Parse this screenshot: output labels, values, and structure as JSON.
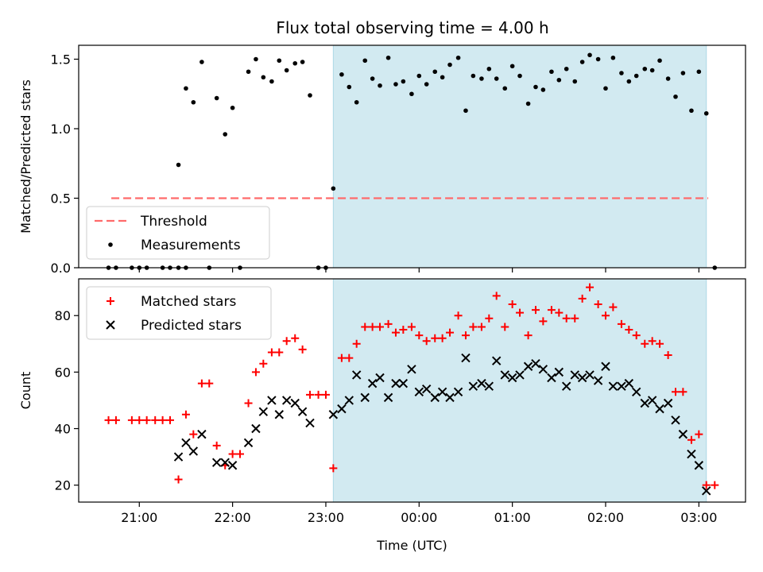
{
  "title": "Flux total observing time = 4.00 h",
  "colors": {
    "observing_window": "#add8e6",
    "threshold": "#ff6b6b",
    "measurements": "#000000",
    "matched": "#ff0000",
    "predicted": "#000000"
  },
  "chart_data": [
    {
      "type": "scatter",
      "panel": "top",
      "ylabel": "Matched/Predicted stars",
      "xlabel": "",
      "ylim": [
        0,
        1.6
      ],
      "yticks": [
        0.0,
        0.5,
        1.0,
        1.5
      ],
      "ytick_labels": [
        "0.0",
        "0.5",
        "1.0",
        "1.5"
      ],
      "x_unit": "hours since 00:00 UTC (negative = previous day)",
      "observing_window": [
        -0.92,
        3.08
      ],
      "threshold": {
        "name": "Threshold",
        "value": 0.5,
        "x_range": [
          -3.3,
          3.1
        ]
      },
      "legend": {
        "position": "lower-left",
        "entries": [
          "Threshold",
          "Measurements"
        ]
      },
      "series": [
        {
          "name": "Measurements",
          "points": [
            [
              -3.33,
              0.0
            ],
            [
              -3.25,
              0.0
            ],
            [
              -3.08,
              0.0
            ],
            [
              -3.0,
              0.0
            ],
            [
              -2.92,
              0.0
            ],
            [
              -2.75,
              0.0
            ],
            [
              -2.67,
              0.0
            ],
            [
              -2.58,
              0.0
            ],
            [
              -2.5,
              0.0
            ],
            [
              -2.58,
              0.74
            ],
            [
              -2.5,
              1.29
            ],
            [
              -2.42,
              1.19
            ],
            [
              -2.33,
              1.48
            ],
            [
              -2.25,
              0.0
            ],
            [
              -2.17,
              1.22
            ],
            [
              -2.08,
              0.96
            ],
            [
              -2.0,
              1.15
            ],
            [
              -1.92,
              0.0
            ],
            [
              -1.83,
              1.41
            ],
            [
              -1.75,
              1.5
            ],
            [
              -1.67,
              1.37
            ],
            [
              -1.58,
              1.34
            ],
            [
              -1.5,
              1.49
            ],
            [
              -1.42,
              1.42
            ],
            [
              -1.33,
              1.47
            ],
            [
              -1.25,
              1.48
            ],
            [
              -1.17,
              1.24
            ],
            [
              -1.08,
              0.0
            ],
            [
              -1.0,
              0.0
            ],
            [
              -0.92,
              0.57
            ],
            [
              -0.83,
              1.39
            ],
            [
              -0.75,
              1.3
            ],
            [
              -0.67,
              1.19
            ],
            [
              -0.58,
              1.49
            ],
            [
              -0.5,
              1.36
            ],
            [
              -0.42,
              1.31
            ],
            [
              -0.33,
              1.51
            ],
            [
              -0.25,
              1.32
            ],
            [
              -0.17,
              1.34
            ],
            [
              -0.08,
              1.25
            ],
            [
              0.0,
              1.38
            ],
            [
              0.08,
              1.32
            ],
            [
              0.17,
              1.41
            ],
            [
              0.25,
              1.37
            ],
            [
              0.33,
              1.46
            ],
            [
              0.42,
              1.51
            ],
            [
              0.5,
              1.13
            ],
            [
              0.58,
              1.38
            ],
            [
              0.67,
              1.36
            ],
            [
              0.75,
              1.43
            ],
            [
              0.83,
              1.36
            ],
            [
              0.92,
              1.29
            ],
            [
              1.0,
              1.45
            ],
            [
              1.08,
              1.38
            ],
            [
              1.17,
              1.18
            ],
            [
              1.25,
              1.3
            ],
            [
              1.33,
              1.28
            ],
            [
              1.42,
              1.41
            ],
            [
              1.5,
              1.35
            ],
            [
              1.58,
              1.43
            ],
            [
              1.67,
              1.34
            ],
            [
              1.75,
              1.48
            ],
            [
              1.83,
              1.53
            ],
            [
              1.92,
              1.5
            ],
            [
              2.0,
              1.29
            ],
            [
              2.08,
              1.51
            ],
            [
              2.17,
              1.4
            ],
            [
              2.25,
              1.34
            ],
            [
              2.33,
              1.38
            ],
            [
              2.42,
              1.43
            ],
            [
              2.5,
              1.42
            ],
            [
              2.58,
              1.49
            ],
            [
              2.67,
              1.36
            ],
            [
              2.75,
              1.23
            ],
            [
              2.83,
              1.4
            ],
            [
              2.92,
              1.13
            ],
            [
              3.0,
              1.41
            ],
            [
              3.08,
              1.11
            ],
            [
              3.17,
              0.0
            ]
          ]
        }
      ]
    },
    {
      "type": "scatter",
      "panel": "bottom",
      "ylabel": "Count",
      "xlabel": "Time (UTC)",
      "ylim": [
        14,
        93
      ],
      "yticks": [
        20,
        40,
        60,
        80
      ],
      "ytick_labels": [
        "20",
        "40",
        "60",
        "80"
      ],
      "xticks": [
        -3,
        -2,
        -1,
        0,
        1,
        2,
        3
      ],
      "xtick_labels": [
        "21:00",
        "22:00",
        "23:00",
        "00:00",
        "01:00",
        "02:00",
        "03:00"
      ],
      "xlim": [
        -3.65,
        3.5
      ],
      "observing_window": [
        -0.92,
        3.08
      ],
      "legend": {
        "position": "top-left",
        "entries": [
          "Matched stars",
          "Predicted stars"
        ]
      },
      "series": [
        {
          "name": "Matched stars",
          "marker": "plus",
          "points": [
            [
              -3.33,
              43
            ],
            [
              -3.25,
              43
            ],
            [
              -3.08,
              43
            ],
            [
              -3.0,
              43
            ],
            [
              -2.92,
              43
            ],
            [
              -2.83,
              43
            ],
            [
              -2.75,
              43
            ],
            [
              -2.67,
              43
            ],
            [
              -2.58,
              22
            ],
            [
              -2.5,
              45
            ],
            [
              -2.42,
              38
            ],
            [
              -2.33,
              56
            ],
            [
              -2.25,
              56
            ],
            [
              -2.17,
              34
            ],
            [
              -2.08,
              27
            ],
            [
              -2.0,
              31
            ],
            [
              -1.92,
              31
            ],
            [
              -1.83,
              49
            ],
            [
              -1.75,
              60
            ],
            [
              -1.67,
              63
            ],
            [
              -1.58,
              67
            ],
            [
              -1.5,
              67
            ],
            [
              -1.42,
              71
            ],
            [
              -1.33,
              72
            ],
            [
              -1.25,
              68
            ],
            [
              -1.17,
              52
            ],
            [
              -1.08,
              52
            ],
            [
              -1.0,
              52
            ],
            [
              -0.92,
              26
            ],
            [
              -0.83,
              65
            ],
            [
              -0.75,
              65
            ],
            [
              -0.67,
              70
            ],
            [
              -0.58,
              76
            ],
            [
              -0.5,
              76
            ],
            [
              -0.42,
              76
            ],
            [
              -0.33,
              77
            ],
            [
              -0.25,
              74
            ],
            [
              -0.17,
              75
            ],
            [
              -0.08,
              76
            ],
            [
              0.0,
              73
            ],
            [
              0.08,
              71
            ],
            [
              0.17,
              72
            ],
            [
              0.25,
              72
            ],
            [
              0.33,
              74
            ],
            [
              0.42,
              80
            ],
            [
              0.5,
              73
            ],
            [
              0.58,
              76
            ],
            [
              0.67,
              76
            ],
            [
              0.75,
              79
            ],
            [
              0.83,
              87
            ],
            [
              0.92,
              76
            ],
            [
              1.0,
              84
            ],
            [
              1.08,
              81
            ],
            [
              1.17,
              73
            ],
            [
              1.25,
              82
            ],
            [
              1.33,
              78
            ],
            [
              1.42,
              82
            ],
            [
              1.5,
              81
            ],
            [
              1.58,
              79
            ],
            [
              1.67,
              79
            ],
            [
              1.75,
              86
            ],
            [
              1.83,
              90
            ],
            [
              1.92,
              84
            ],
            [
              2.0,
              80
            ],
            [
              2.08,
              83
            ],
            [
              2.17,
              77
            ],
            [
              2.25,
              75
            ],
            [
              2.33,
              73
            ],
            [
              2.42,
              70
            ],
            [
              2.5,
              71
            ],
            [
              2.58,
              70
            ],
            [
              2.67,
              66
            ],
            [
              2.75,
              53
            ],
            [
              2.83,
              53
            ],
            [
              2.92,
              36
            ],
            [
              3.0,
              38
            ],
            [
              3.08,
              20
            ],
            [
              3.17,
              20
            ]
          ]
        },
        {
          "name": "Predicted stars",
          "marker": "x",
          "points": [
            [
              -2.58,
              30
            ],
            [
              -2.5,
              35
            ],
            [
              -2.42,
              32
            ],
            [
              -2.33,
              38
            ],
            [
              -2.17,
              28
            ],
            [
              -2.08,
              28
            ],
            [
              -2.0,
              27
            ],
            [
              -1.83,
              35
            ],
            [
              -1.75,
              40
            ],
            [
              -1.67,
              46
            ],
            [
              -1.58,
              50
            ],
            [
              -1.5,
              45
            ],
            [
              -1.42,
              50
            ],
            [
              -1.33,
              49
            ],
            [
              -1.25,
              46
            ],
            [
              -1.17,
              42
            ],
            [
              -0.92,
              45
            ],
            [
              -0.83,
              47
            ],
            [
              -0.75,
              50
            ],
            [
              -0.67,
              59
            ],
            [
              -0.58,
              51
            ],
            [
              -0.5,
              56
            ],
            [
              -0.42,
              58
            ],
            [
              -0.33,
              51
            ],
            [
              -0.25,
              56
            ],
            [
              -0.17,
              56
            ],
            [
              -0.08,
              61
            ],
            [
              0.0,
              53
            ],
            [
              0.08,
              54
            ],
            [
              0.17,
              51
            ],
            [
              0.25,
              53
            ],
            [
              0.33,
              51
            ],
            [
              0.42,
              53
            ],
            [
              0.5,
              65
            ],
            [
              0.58,
              55
            ],
            [
              0.67,
              56
            ],
            [
              0.75,
              55
            ],
            [
              0.83,
              64
            ],
            [
              0.92,
              59
            ],
            [
              1.0,
              58
            ],
            [
              1.08,
              59
            ],
            [
              1.17,
              62
            ],
            [
              1.25,
              63
            ],
            [
              1.33,
              61
            ],
            [
              1.42,
              58
            ],
            [
              1.5,
              60
            ],
            [
              1.58,
              55
            ],
            [
              1.67,
              59
            ],
            [
              1.75,
              58
            ],
            [
              1.83,
              59
            ],
            [
              1.92,
              57
            ],
            [
              2.0,
              62
            ],
            [
              2.08,
              55
            ],
            [
              2.17,
              55
            ],
            [
              2.25,
              56
            ],
            [
              2.33,
              53
            ],
            [
              2.42,
              49
            ],
            [
              2.5,
              50
            ],
            [
              2.58,
              47
            ],
            [
              2.67,
              49
            ],
            [
              2.75,
              43
            ],
            [
              2.83,
              38
            ],
            [
              2.92,
              31
            ],
            [
              3.0,
              27
            ],
            [
              3.08,
              18
            ]
          ]
        }
      ]
    }
  ]
}
